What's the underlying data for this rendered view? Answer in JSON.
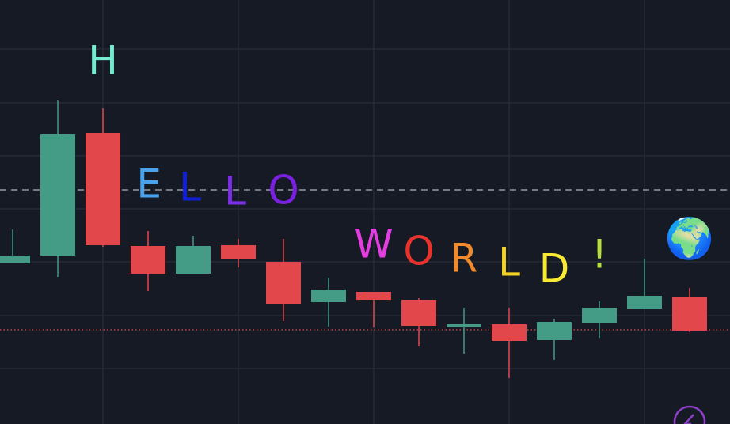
{
  "chart_data": {
    "type": "candlestick",
    "x": [
      0,
      1,
      2,
      3,
      4,
      5,
      6,
      7,
      8,
      9,
      10,
      11,
      12,
      13,
      14,
      15
    ],
    "open": [
      203,
      213,
      368,
      225,
      190,
      226,
      205,
      154,
      167,
      157,
      122,
      126,
      106,
      128,
      146,
      160
    ],
    "high": [
      246,
      409,
      399,
      244,
      238,
      234,
      234,
      185,
      167,
      159,
      147,
      147,
      133,
      155,
      209,
      172
    ],
    "low": [
      203,
      186,
      224,
      168,
      190,
      198,
      130,
      123,
      122,
      98,
      89,
      58,
      81,
      109,
      146,
      116
    ],
    "close": [
      213,
      366,
      226,
      190,
      225,
      208,
      152,
      170,
      157,
      124,
      127,
      105,
      129,
      147,
      162,
      118
    ],
    "up_color": "#449b86",
    "down_color": "#e2474c",
    "xlim": [
      -0.281,
      15.895
    ],
    "ylim": [
      0,
      536
    ],
    "xticks": [
      2,
      5,
      8,
      11,
      14
    ],
    "yticks": [
      474,
      406,
      339,
      272,
      205,
      137,
      70
    ],
    "grid": true,
    "reference_lines": [
      {
        "value": 296,
        "style": "dashed",
        "color": "#9598a1"
      },
      {
        "value": 119,
        "style": "dotted",
        "color": "#f0484c"
      }
    ],
    "annotations": [
      {
        "text": "H",
        "color": "#72ecd0",
        "x": 2,
        "y": 456
      },
      {
        "text": "E",
        "color": "#4aa3ea",
        "x": 3.02,
        "y": 300
      },
      {
        "text": "L",
        "color": "#1020d4",
        "x": 3.93,
        "y": 296
      },
      {
        "text": "L",
        "color": "#7b2ee6",
        "x": 4.93,
        "y": 291
      },
      {
        "text": "O",
        "color": "#7a20e2",
        "x": 6,
        "y": 292
      },
      {
        "text": "W",
        "color": "#e63de2",
        "x": 8,
        "y": 224
      },
      {
        "text": "O",
        "color": "#ea322c",
        "x": 9,
        "y": 215
      },
      {
        "text": "R",
        "color": "#f18a2c",
        "x": 10,
        "y": 206
      },
      {
        "text": "L",
        "color": "#f2d21e",
        "x": 11,
        "y": 201
      },
      {
        "text": "D",
        "color": "#f8ea32",
        "x": 12,
        "y": 193
      },
      {
        "text": "!",
        "color": "#b6e03e",
        "x": 13,
        "y": 211
      },
      {
        "text": "🌍",
        "color": "#3a8fd8",
        "x": 15,
        "y": 231
      }
    ]
  }
}
